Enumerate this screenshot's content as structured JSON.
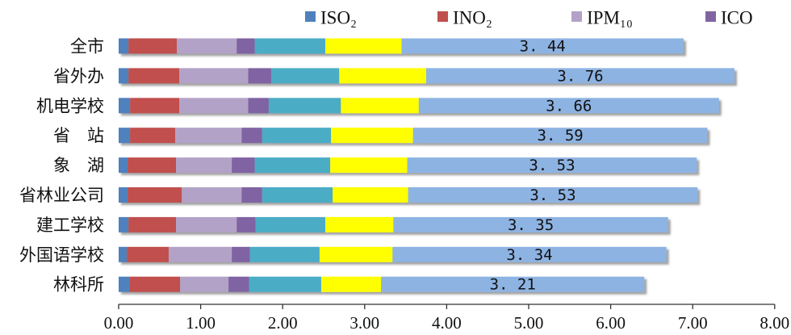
{
  "chart_data": {
    "type": "bar",
    "orientation": "horizontal",
    "stacked": true,
    "categories": [
      "全市",
      "省外办",
      "机电学校",
      "省　站",
      "象　湖",
      "省林业公司",
      "建工学校",
      "外国语学校",
      "林科所"
    ],
    "series": [
      {
        "name": "ISO₂",
        "color": "#4f81bd",
        "legend": true,
        "values": [
          0.12,
          0.12,
          0.14,
          0.14,
          0.11,
          0.11,
          0.12,
          0.1,
          0.13
        ]
      },
      {
        "name": "INO₂",
        "color": "#c0504d",
        "legend": true,
        "values": [
          0.59,
          0.62,
          0.6,
          0.55,
          0.59,
          0.66,
          0.58,
          0.51,
          0.62
        ]
      },
      {
        "name": "IPM₁₀",
        "color": "#b3a2c7",
        "legend": true,
        "values": [
          0.73,
          0.84,
          0.84,
          0.81,
          0.68,
          0.73,
          0.74,
          0.77,
          0.59
        ]
      },
      {
        "name": "ICO",
        "color": "#8064a2",
        "legend": true,
        "values": [
          0.22,
          0.28,
          0.25,
          0.25,
          0.28,
          0.25,
          0.23,
          0.22,
          0.25
        ]
      },
      {
        "name": "",
        "color": "#4bacc6",
        "legend": false,
        "values": [
          0.86,
          0.83,
          0.88,
          0.84,
          0.92,
          0.86,
          0.85,
          0.85,
          0.88
        ]
      },
      {
        "name": "",
        "color": "#ffff00",
        "legend": false,
        "values": [
          0.93,
          1.06,
          0.95,
          1.0,
          0.94,
          0.92,
          0.83,
          0.89,
          0.73
        ]
      },
      {
        "name": "",
        "color": "#8db3e2",
        "legend": false,
        "values": [
          3.44,
          3.76,
          3.66,
          3.59,
          3.53,
          3.53,
          3.35,
          3.34,
          3.21
        ]
      }
    ],
    "data_labels": [
      "3. 44",
      "3. 76",
      "3. 66",
      "3. 59",
      "3. 53",
      "3. 53",
      "3. 35",
      "3. 34",
      "3. 21"
    ],
    "xlim": [
      0,
      8
    ],
    "xticks": [
      "0.00",
      "1.00",
      "2.00",
      "3.00",
      "4.00",
      "5.00",
      "6.00",
      "7.00",
      "8.00"
    ],
    "xtick_values": [
      0,
      1,
      2,
      3,
      4,
      5,
      6,
      7,
      8
    ],
    "grid": false,
    "legend_position": "top",
    "title": "",
    "xlabel": "",
    "ylabel": ""
  }
}
